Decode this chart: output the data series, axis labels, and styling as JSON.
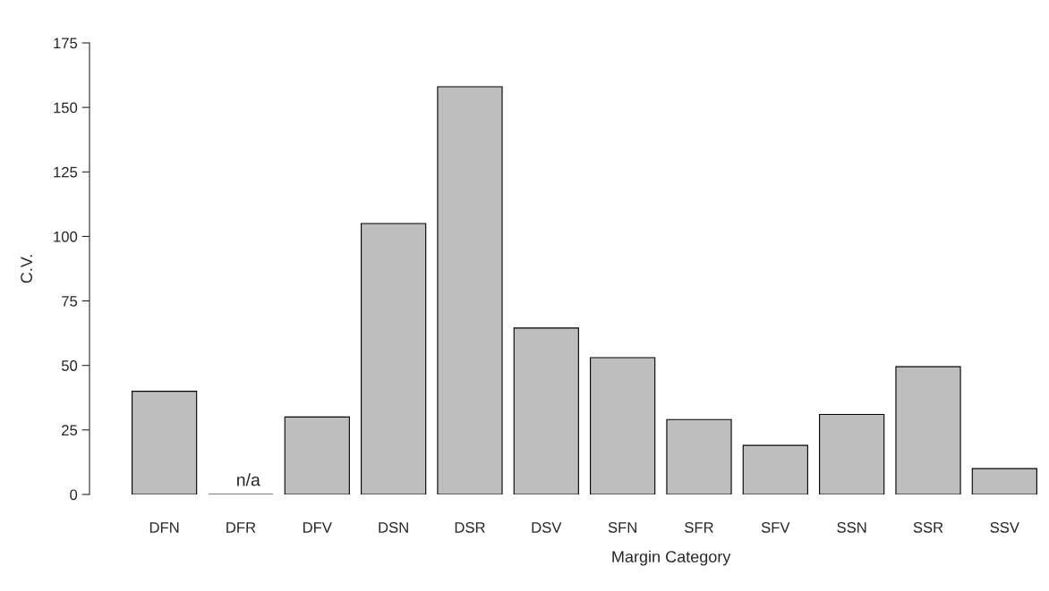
{
  "chart_data": {
    "type": "bar",
    "xlabel": "Margin Category",
    "ylabel": "C.V.",
    "categories": [
      "DFN",
      "DFR",
      "DFV",
      "DSN",
      "DSR",
      "DSV",
      "SFN",
      "SFR",
      "SFV",
      "SSN",
      "SSR",
      "SSV"
    ],
    "values": [
      40,
      0,
      30,
      105,
      158,
      64.5,
      53,
      29,
      19,
      31,
      49.5,
      10
    ],
    "colors": [
      "#bebebe",
      "#000000",
      "#bebebe",
      "#bebebe",
      "#bebebe",
      "#bebebe",
      "#bebebe",
      "#bebebe",
      "#bebebe",
      "#bebebe",
      "#bebebe",
      "#bebebe"
    ],
    "ylim": [
      0,
      175
    ],
    "yticks": [
      0,
      25,
      50,
      75,
      100,
      125,
      150,
      175
    ],
    "annotations": [
      {
        "text": "n/a",
        "x": "DFR",
        "y": 0
      }
    ],
    "grid": false
  }
}
